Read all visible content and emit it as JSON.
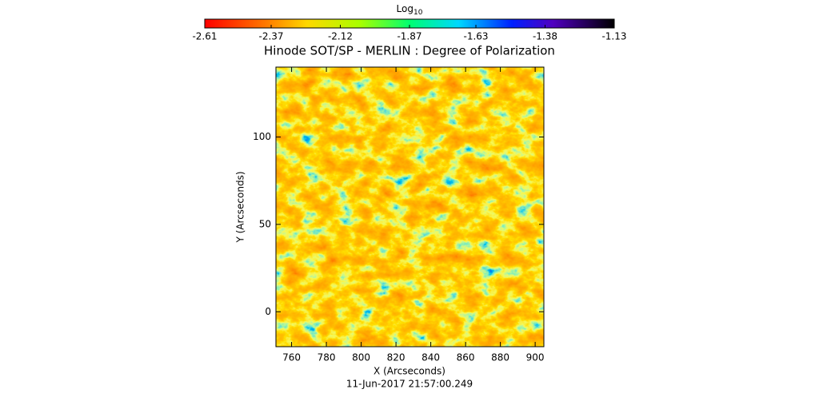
{
  "chart_data": {
    "type": "heatmap",
    "title": "Hinode SOT/SP - MERLIN : Degree of Polarization",
    "colorbar_title": [
      "Log",
      "10"
    ],
    "clim": [
      -2.61,
      -1.13
    ],
    "cticks": [
      -2.61,
      -2.37,
      -2.12,
      -1.87,
      -1.63,
      -1.38,
      -1.13
    ],
    "xlabel": "X (Arcseconds)",
    "ylabel": "Y (Arcseconds)",
    "xlim": [
      751,
      905
    ],
    "xticks": [
      760,
      780,
      800,
      820,
      840,
      860,
      880,
      900
    ],
    "ylim": [
      -20,
      140
    ],
    "yticks": [
      0,
      50,
      100
    ],
    "annotation": "11-Jun-2017 21:57:00.249"
  }
}
